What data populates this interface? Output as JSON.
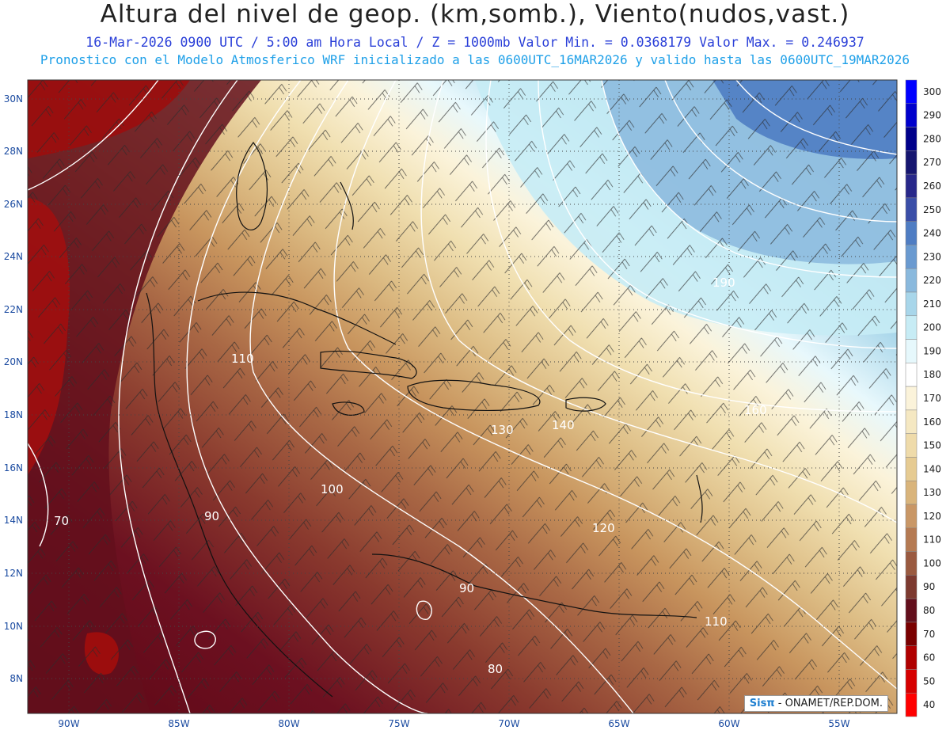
{
  "header": {
    "title": "Altura del nivel de geop. (km,somb.), Viento(nudos,vast.)",
    "subtitle_line1": "16-Mar-2026  0900 UTC / 5:00 am Hora Local / Z = 1000mb  Valor Min. = 0.0368179  Valor Max. = 0.246937",
    "subtitle_line2": "Pronostico con el Modelo Atmosferico WRF inicializado a las 0600UTC_16MAR2026 y valido hasta las  0600UTC_19MAR2026"
  },
  "map": {
    "lon_range": [
      -92,
      -52.5
    ],
    "lat_range": [
      6.5,
      31
    ],
    "lon_ticks": [
      "90W",
      "85W",
      "80W",
      "75W",
      "70W",
      "65W",
      "60W",
      "55W"
    ],
    "lat_ticks": [
      "30N",
      "28N",
      "26N",
      "24N",
      "22N",
      "20N",
      "18N",
      "16N",
      "14N",
      "12N",
      "10N",
      "8N"
    ],
    "contour_labels": [
      "70",
      "90",
      "110",
      "100",
      "130",
      "140",
      "160",
      "190",
      "120",
      "90",
      "110",
      "80"
    ],
    "grid": "dotted"
  },
  "colorbar": {
    "levels": [
      "300",
      "290",
      "280",
      "270",
      "260",
      "250",
      "240",
      "230",
      "220",
      "210",
      "200",
      "190",
      "180",
      "170",
      "160",
      "150",
      "140",
      "130",
      "120",
      "110",
      "100",
      "90",
      "80",
      "70",
      "60",
      "50",
      "40"
    ],
    "colors": [
      "#0000ff",
      "#0000cc",
      "#00008a",
      "#161670",
      "#28288a",
      "#3a4ea8",
      "#4f7dc3",
      "#6a9ad0",
      "#8ab9dd",
      "#a8d6ea",
      "#c7ecf5",
      "#e6f8fc",
      "#ffffff",
      "#fbf3da",
      "#f5e8c2",
      "#efdbaa",
      "#e6cb92",
      "#d9b47b",
      "#c99766",
      "#b57a52",
      "#9a5a40",
      "#7d3a30",
      "#630f1c",
      "#7a0000",
      "#b00000",
      "#d60000",
      "#ff0000"
    ]
  },
  "credit": {
    "logo": "Sisπ",
    "text": "- ONAMET/REP.DOM."
  }
}
